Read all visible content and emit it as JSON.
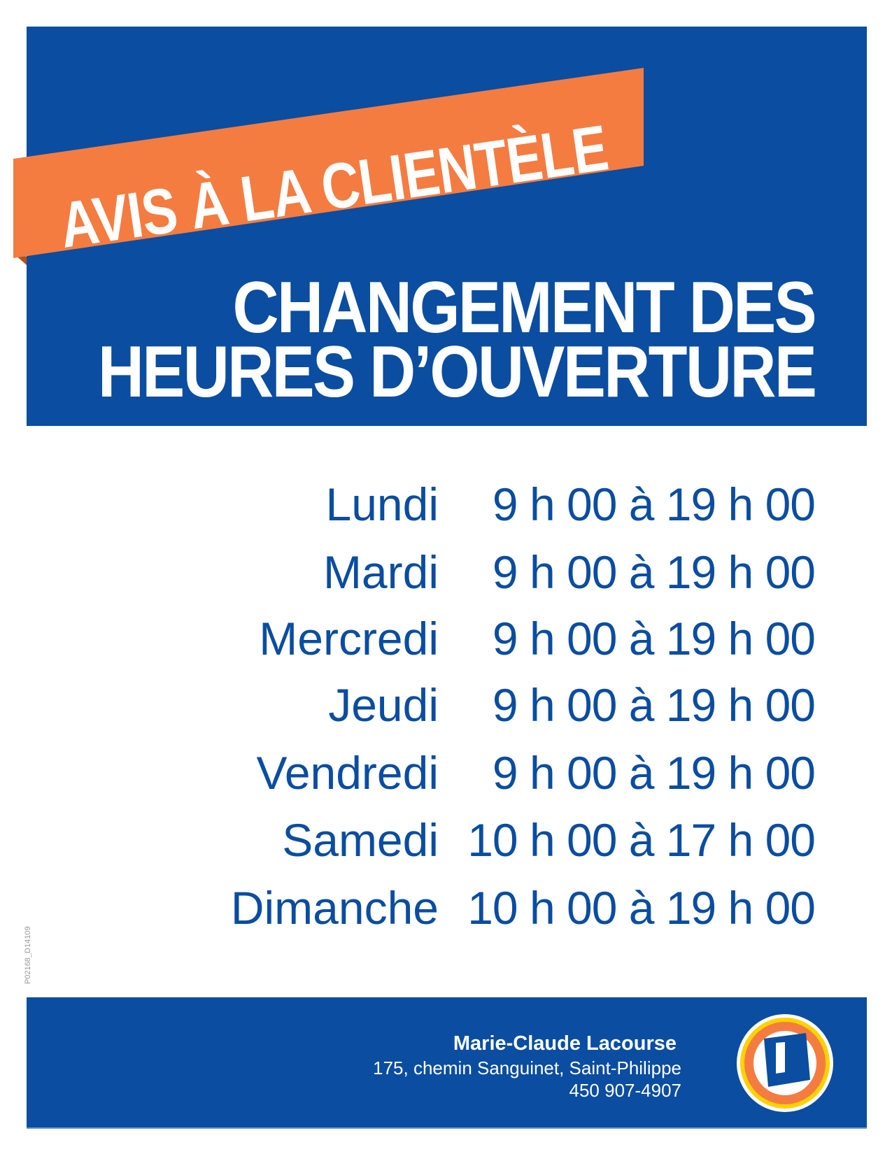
{
  "banner": {
    "text": "AVIS À LA CLIENTÈLE"
  },
  "title": {
    "line1": "CHANGEMENT DES",
    "line2": "HEURES D’OUVERTURE"
  },
  "schedule": [
    {
      "day": "Lundi",
      "hours": "9 h 00 à 19 h 00"
    },
    {
      "day": "Mardi",
      "hours": "9 h 00 à 19 h 00"
    },
    {
      "day": "Mercredi",
      "hours": "9 h 00 à 19 h 00"
    },
    {
      "day": "Jeudi",
      "hours": "9 h 00 à 19 h 00"
    },
    {
      "day": "Vendredi",
      "hours": "9 h 00 à 19 h 00"
    },
    {
      "day": "Samedi",
      "hours": "10 h 00 à 17 h 00"
    },
    {
      "day": "Dimanche",
      "hours": "10 h 00 à 19 h 00"
    }
  ],
  "side_code": "P02168_D14109",
  "footer": {
    "name": "Marie-Claude Lacourse",
    "address": "175, chemin Sanguinet, Saint-Philippe",
    "phone": "450 907-4907",
    "logo_letter": "U"
  },
  "colors": {
    "blue": "#0a4da1",
    "orange": "#f47c41",
    "yellow": "#ffd200"
  }
}
